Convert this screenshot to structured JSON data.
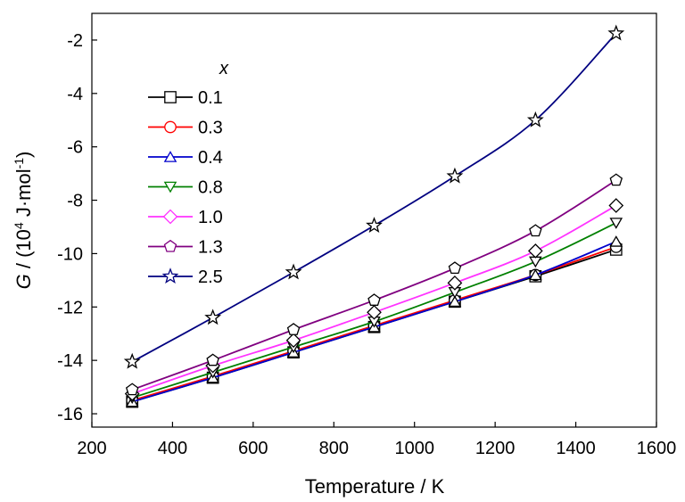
{
  "chart_data": {
    "type": "line",
    "xlabel": "Temperature / K",
    "ylabel": {
      "italic": "G",
      "prefix": " / (10",
      "sup1": "4",
      "middle": " J·mol",
      "sup2": "-1",
      "suffix": ")"
    },
    "xlim": [
      200,
      1600
    ],
    "ylim": [
      -16.5,
      -1.0
    ],
    "xticks": [
      200,
      400,
      600,
      800,
      1000,
      1200,
      1400,
      1600
    ],
    "yticks": [
      -16,
      -14,
      -12,
      -10,
      -8,
      -6,
      -4,
      -2
    ],
    "grid": false,
    "legend_title": "x",
    "legend_position": "top-left",
    "x": [
      300,
      500,
      700,
      900,
      1100,
      1300,
      1500
    ],
    "series": [
      {
        "name": "0.1",
        "marker": "square",
        "color": "#000000",
        "values": [
          -15.55,
          -14.65,
          -13.7,
          -12.75,
          -11.8,
          -10.85,
          -9.85
        ]
      },
      {
        "name": "0.3",
        "marker": "circle",
        "color": "#ff0000",
        "values": [
          -15.5,
          -14.6,
          -13.65,
          -12.7,
          -11.75,
          -10.8,
          -9.75
        ]
      },
      {
        "name": "0.4",
        "marker": "triangle-up",
        "color": "#0000cc",
        "values": [
          -15.55,
          -14.65,
          -13.7,
          -12.75,
          -11.8,
          -10.8,
          -9.55
        ]
      },
      {
        "name": "0.8",
        "marker": "triangle-down",
        "color": "#008000",
        "values": [
          -15.4,
          -14.45,
          -13.5,
          -12.55,
          -11.45,
          -10.3,
          -8.85
        ]
      },
      {
        "name": "1.0",
        "marker": "diamond",
        "color": "#ff33ff",
        "values": [
          -15.25,
          -14.2,
          -13.25,
          -12.2,
          -11.1,
          -9.9,
          -8.2
        ]
      },
      {
        "name": "1.3",
        "marker": "pentagon",
        "color": "#800080",
        "values": [
          -15.1,
          -14.0,
          -12.85,
          -11.75,
          -10.55,
          -9.15,
          -7.25
        ]
      },
      {
        "name": "2.5",
        "marker": "star",
        "color": "#000080",
        "values": [
          -14.05,
          -12.4,
          -10.7,
          -8.95,
          -7.1,
          -5.0,
          -1.75
        ]
      }
    ]
  }
}
